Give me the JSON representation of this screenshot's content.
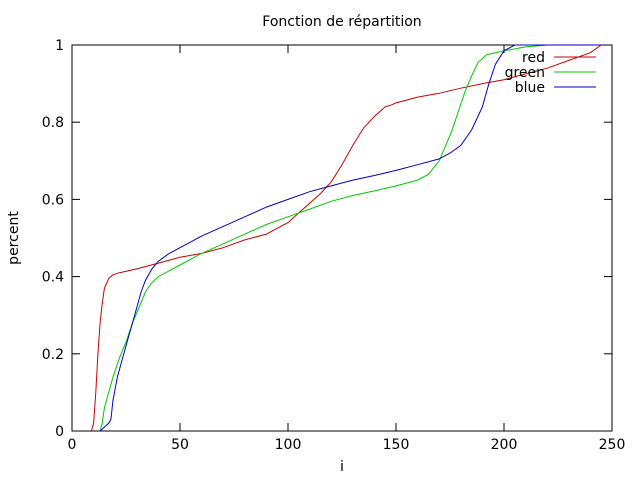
{
  "chart_data": {
    "type": "line",
    "title": "Fonction de répartition",
    "xlabel": "i",
    "ylabel": "percent",
    "xlim": [
      0,
      250
    ],
    "ylim": [
      0,
      1
    ],
    "x_ticks": [
      0,
      50,
      100,
      150,
      200,
      250
    ],
    "y_ticks": [
      0,
      0.2,
      0.4,
      0.6,
      0.8,
      1
    ],
    "x_tick_labels": [
      "0",
      "50",
      "100",
      "150",
      "200",
      "250"
    ],
    "y_tick_labels": [
      "0",
      "0.2",
      "0.4",
      "0.6",
      "0.8",
      "1"
    ],
    "grid": false,
    "legend_position": "top-right",
    "series": [
      {
        "name": "red",
        "color": "#c80000",
        "points": [
          [
            9,
            0
          ],
          [
            10,
            0.02
          ],
          [
            11,
            0.1
          ],
          [
            12,
            0.2
          ],
          [
            13,
            0.28
          ],
          [
            14,
            0.33
          ],
          [
            15,
            0.37
          ],
          [
            17,
            0.395
          ],
          [
            19,
            0.405
          ],
          [
            22,
            0.41
          ],
          [
            30,
            0.42
          ],
          [
            40,
            0.435
          ],
          [
            50,
            0.45
          ],
          [
            60,
            0.46
          ],
          [
            70,
            0.475
          ],
          [
            80,
            0.495
          ],
          [
            90,
            0.51
          ],
          [
            95,
            0.525
          ],
          [
            100,
            0.54
          ],
          [
            105,
            0.565
          ],
          [
            110,
            0.59
          ],
          [
            115,
            0.615
          ],
          [
            120,
            0.645
          ],
          [
            125,
            0.69
          ],
          [
            130,
            0.74
          ],
          [
            135,
            0.785
          ],
          [
            140,
            0.815
          ],
          [
            145,
            0.84
          ],
          [
            148,
            0.845
          ],
          [
            150,
            0.85
          ],
          [
            160,
            0.865
          ],
          [
            170,
            0.875
          ],
          [
            180,
            0.888
          ],
          [
            190,
            0.9
          ],
          [
            200,
            0.91
          ],
          [
            210,
            0.925
          ],
          [
            220,
            0.94
          ],
          [
            230,
            0.96
          ],
          [
            240,
            0.98
          ],
          [
            245,
            1
          ]
        ]
      },
      {
        "name": "green",
        "color": "#00c800",
        "points": [
          [
            13,
            0
          ],
          [
            14,
            0.02
          ],
          [
            15,
            0.06
          ],
          [
            17,
            0.1
          ],
          [
            19,
            0.14
          ],
          [
            22,
            0.19
          ],
          [
            25,
            0.23
          ],
          [
            28,
            0.28
          ],
          [
            31,
            0.32
          ],
          [
            34,
            0.36
          ],
          [
            37,
            0.385
          ],
          [
            40,
            0.4
          ],
          [
            45,
            0.415
          ],
          [
            50,
            0.43
          ],
          [
            60,
            0.46
          ],
          [
            70,
            0.485
          ],
          [
            80,
            0.51
          ],
          [
            90,
            0.535
          ],
          [
            100,
            0.555
          ],
          [
            110,
            0.575
          ],
          [
            120,
            0.595
          ],
          [
            130,
            0.61
          ],
          [
            140,
            0.622
          ],
          [
            150,
            0.635
          ],
          [
            160,
            0.65
          ],
          [
            165,
            0.665
          ],
          [
            170,
            0.7
          ],
          [
            173,
            0.74
          ],
          [
            176,
            0.78
          ],
          [
            179,
            0.83
          ],
          [
            182,
            0.88
          ],
          [
            185,
            0.92
          ],
          [
            188,
            0.955
          ],
          [
            192,
            0.975
          ],
          [
            200,
            0.985
          ],
          [
            210,
            0.995
          ],
          [
            220,
            1
          ],
          [
            245,
            1
          ]
        ]
      },
      {
        "name": "blue",
        "color": "#0000c8",
        "points": [
          [
            13,
            0
          ],
          [
            15,
            0.01
          ],
          [
            17,
            0.02
          ],
          [
            18,
            0.03
          ],
          [
            19,
            0.08
          ],
          [
            21,
            0.14
          ],
          [
            24,
            0.2
          ],
          [
            27,
            0.26
          ],
          [
            30,
            0.32
          ],
          [
            32,
            0.36
          ],
          [
            34,
            0.39
          ],
          [
            37,
            0.42
          ],
          [
            40,
            0.44
          ],
          [
            45,
            0.46
          ],
          [
            50,
            0.475
          ],
          [
            60,
            0.505
          ],
          [
            70,
            0.53
          ],
          [
            80,
            0.555
          ],
          [
            90,
            0.58
          ],
          [
            100,
            0.6
          ],
          [
            110,
            0.62
          ],
          [
            120,
            0.635
          ],
          [
            130,
            0.65
          ],
          [
            140,
            0.662
          ],
          [
            150,
            0.675
          ],
          [
            160,
            0.69
          ],
          [
            170,
            0.705
          ],
          [
            175,
            0.72
          ],
          [
            180,
            0.74
          ],
          [
            185,
            0.78
          ],
          [
            190,
            0.84
          ],
          [
            193,
            0.9
          ],
          [
            196,
            0.95
          ],
          [
            200,
            0.985
          ],
          [
            205,
            1
          ],
          [
            245,
            1
          ]
        ]
      }
    ]
  }
}
